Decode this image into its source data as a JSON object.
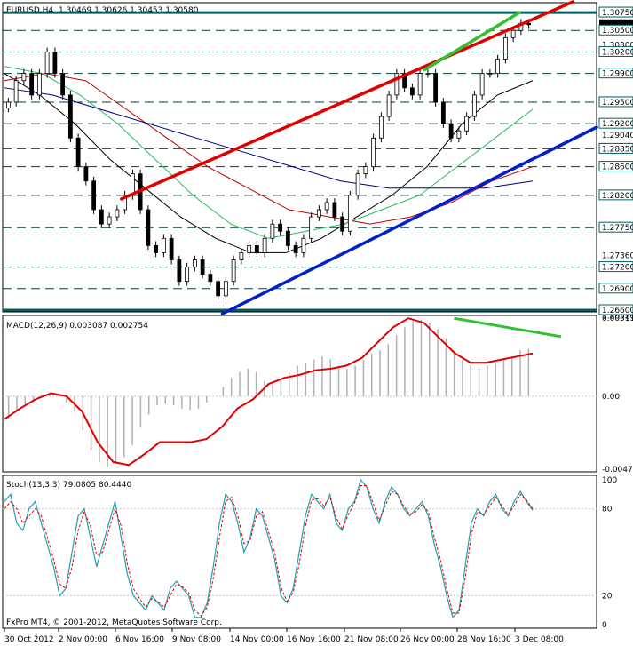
{
  "window": {
    "symbol_header": "EURUSD,H4",
    "ohlc_values": "1.30469 1.30626 1.30453 1.30580",
    "copyright": "FxPro MT4, © 2001-2012, MetaQuotes Software Corp."
  },
  "chart_data": [
    {
      "type": "candlestick",
      "panel": "price",
      "ylim": [
        1.266,
        1.3085
      ],
      "grid": true,
      "axis_tick_labels": [
        "1.30750",
        "1.30580",
        "1.30500",
        "1.30300",
        "1.30200",
        "1.29900",
        "1.29500",
        "1.29200",
        "1.29040",
        "1.28850",
        "1.28600",
        "1.28200",
        "1.27750",
        "1.27360",
        "1.27200",
        "1.26900",
        "1.26520",
        "1.26600"
      ],
      "horizontal_levels": [
        1.3075,
        1.305,
        1.302,
        1.299,
        1.295,
        1.292,
        1.2885,
        1.286,
        1.282,
        1.2775,
        1.272,
        1.269,
        1.266
      ],
      "current_price": 1.3058,
      "close_path": [
        1.295,
        1.298,
        1.299,
        1.296,
        1.299,
        1.302,
        1.299,
        1.296,
        1.29,
        1.286,
        1.284,
        1.28,
        1.278,
        1.279,
        1.28,
        1.282,
        1.285,
        1.28,
        1.275,
        1.274,
        1.276,
        1.273,
        1.27,
        1.272,
        1.273,
        1.271,
        1.27,
        1.268,
        1.27,
        1.273,
        1.274,
        1.275,
        1.274,
        1.276,
        1.278,
        1.277,
        1.275,
        1.274,
        1.276,
        1.279,
        1.28,
        1.281,
        1.279,
        1.277,
        1.282,
        1.285,
        1.286,
        1.29,
        1.293,
        1.296,
        1.299,
        1.297,
        1.296,
        1.299,
        1.299,
        1.295,
        1.292,
        1.29,
        1.291,
        1.293,
        1.296,
        1.299,
        1.299,
        1.301,
        1.304,
        1.305,
        1.306,
        1.3058
      ],
      "moving_averages": [
        {
          "color": "#000000",
          "values": [
            1.299,
            1.296,
            1.292,
            1.287,
            1.283,
            1.279,
            1.276,
            1.274,
            1.274,
            1.276,
            1.279,
            1.282,
            1.286,
            1.292,
            1.296,
            1.298
          ]
        },
        {
          "color": "#20c060",
          "values": [
            1.3,
            1.299,
            1.296,
            1.292,
            1.287,
            1.282,
            1.278,
            1.276,
            1.277,
            1.278,
            1.28,
            1.282,
            1.286,
            1.29,
            1.294
          ]
        },
        {
          "color": "#c00000",
          "values": [
            1.298,
            1.299,
            1.298,
            1.294,
            1.29,
            1.286,
            1.283,
            1.28,
            1.279,
            1.278,
            1.279,
            1.281,
            1.284,
            1.286
          ]
        },
        {
          "color": "#000080",
          "values": [
            1.297,
            1.296,
            1.294,
            1.292,
            1.29,
            1.288,
            1.286,
            1.284,
            1.283,
            1.283,
            1.283,
            1.284
          ]
        }
      ],
      "trend_lines": [
        {
          "color": "#e00000",
          "from": [
            0.2,
            1.2815
          ],
          "to": [
            0.96,
            1.309
          ]
        },
        {
          "color": "#0020c8",
          "from": [
            0.37,
            1.2655
          ],
          "to": [
            1.0,
            1.2915
          ]
        },
        {
          "color": "#30c030",
          "from": [
            0.71,
            1.2995
          ],
          "to": [
            0.87,
            1.3075
          ]
        }
      ]
    },
    {
      "type": "histogram",
      "panel": "macd",
      "title": "MACD(12,26,9) 0.003087 0.002754",
      "axis_tick_labels": [
        "0.00511",
        "0.00",
        "-0.00477"
      ],
      "ylim": [
        -0.00477,
        0.00511
      ],
      "bars": [
        -0.0015,
        -0.001,
        -0.0006,
        -0.0003,
        0.0001,
        0.0002,
        0.0001,
        -0.0004,
        -0.001,
        -0.0022,
        -0.0035,
        -0.0043,
        -0.0046,
        -0.0044,
        -0.004,
        -0.0032,
        -0.002,
        -0.0012,
        -0.0006,
        -0.0005,
        -0.0006,
        -0.0008,
        -0.0009,
        -0.0008,
        -0.0004,
        0.0,
        0.0006,
        0.0012,
        0.0016,
        0.0018,
        0.0016,
        0.001,
        0.0008,
        0.0012,
        0.0016,
        0.002,
        0.0022,
        0.0024,
        0.0026,
        0.0024,
        0.002,
        0.0018,
        0.002,
        0.0024,
        0.0028,
        0.003,
        0.0034,
        0.004,
        0.0045,
        0.0049,
        0.005,
        0.0048,
        0.0044,
        0.0038,
        0.003,
        0.0024,
        0.002,
        0.0018,
        0.002,
        0.0022,
        0.0024,
        0.0026,
        0.003,
        0.0031
      ],
      "signal": [
        -0.0015,
        -0.0008,
        -0.0002,
        0.0002,
        0.0,
        -0.001,
        -0.003,
        -0.0043,
        -0.0045,
        -0.0038,
        -0.003,
        -0.003,
        -0.003,
        -0.0028,
        -0.002,
        -0.0008,
        -0.0002,
        0.0008,
        0.0012,
        0.0014,
        0.0017,
        0.0018,
        0.002,
        0.0025,
        0.0035,
        0.0045,
        0.0051,
        0.0048,
        0.0038,
        0.0028,
        0.0022,
        0.0022,
        0.0024,
        0.0026,
        0.0028
      ],
      "divergence_line": {
        "from": [
          0.76,
          0.0051
        ],
        "to": [
          0.94,
          0.0039
        ]
      }
    },
    {
      "type": "line",
      "panel": "stoch",
      "title": "Stoch(13,3,3) 79.0805 80.4440",
      "axis_tick_labels": [
        "100",
        "80",
        "20",
        "0"
      ],
      "ylim": [
        0,
        100
      ],
      "main": [
        85,
        90,
        70,
        65,
        80,
        85,
        70,
        55,
        40,
        20,
        25,
        50,
        75,
        80,
        60,
        40,
        55,
        70,
        85,
        60,
        35,
        20,
        15,
        10,
        20,
        15,
        10,
        25,
        30,
        25,
        20,
        5,
        5,
        15,
        40,
        70,
        90,
        85,
        70,
        50,
        60,
        80,
        75,
        60,
        45,
        20,
        15,
        25,
        50,
        75,
        90,
        85,
        80,
        90,
        70,
        65,
        80,
        85,
        100,
        95,
        80,
        70,
        85,
        95,
        90,
        80,
        75,
        80,
        85,
        75,
        55,
        40,
        20,
        5,
        10,
        40,
        70,
        80,
        75,
        85,
        90,
        80,
        75,
        85,
        92,
        85,
        79
      ],
      "signal": [
        80,
        85,
        80,
        70,
        75,
        80,
        75,
        60,
        45,
        28,
        25,
        40,
        65,
        78,
        68,
        48,
        50,
        65,
        80,
        68,
        42,
        25,
        18,
        12,
        18,
        16,
        12,
        20,
        28,
        26,
        22,
        10,
        6,
        12,
        32,
        60,
        85,
        88,
        75,
        56,
        58,
        75,
        78,
        64,
        50,
        26,
        16,
        22,
        42,
        68,
        86,
        87,
        82,
        88,
        74,
        66,
        76,
        84,
        96,
        96,
        84,
        72,
        82,
        92,
        90,
        82,
        76,
        78,
        83,
        78,
        60,
        45,
        25,
        8,
        8,
        32,
        62,
        78,
        76,
        82,
        88,
        82,
        76,
        82,
        90,
        86,
        80
      ]
    }
  ],
  "x_axis": {
    "labels": [
      "30 Oct 2012",
      "2 Nov 00:00",
      "6 Nov 16:00",
      "9 Nov 08:00",
      "14 Nov 00:00",
      "16 Nov 16:00",
      "21 Nov 08:00",
      "26 Nov 00:00",
      "28 Nov 16:00",
      "3 Dec 08:00"
    ]
  }
}
